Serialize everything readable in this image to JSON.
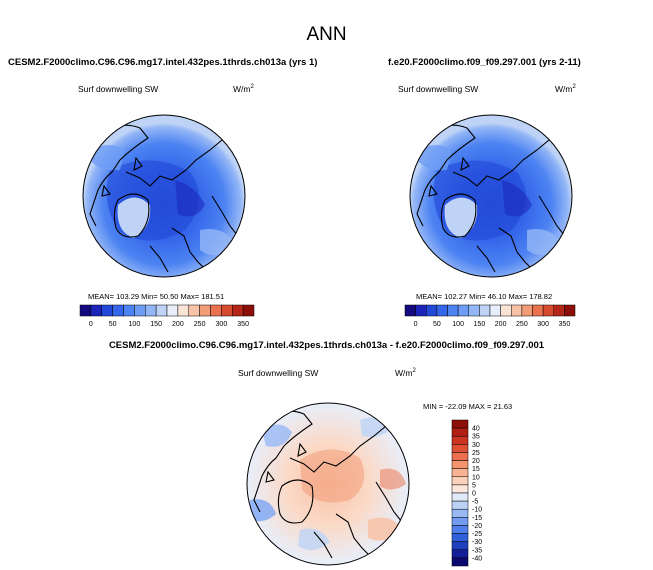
{
  "page_title": "ANN",
  "panels": [
    {
      "case": "CESM2.F2000climo.C96.C96.mg17.intel.432pes.1thrds.ch013a (yrs 1)",
      "variable": "Surf downwelling SW",
      "units_base": "W/m",
      "units_exp": "2",
      "stats": "MEAN= 103.29   Min=  50.50   Max= 181.51"
    },
    {
      "case": "f.e20.F2000climo.f09_f09.297.001 (yrs 2-11)",
      "variable": "Surf downwelling SW",
      "units_base": "W/m",
      "units_exp": "2",
      "stats": "MEAN= 102.27   Min=  46.10   Max= 178.82"
    }
  ],
  "diff_panel": {
    "title": "CESM2.F2000climo.C96.C96.mg17.intel.432pes.1thrds.ch013a - f.e20.F2000climo.f09_f09.297.001",
    "variable": "Surf downwelling SW",
    "units_base": "W/m",
    "units_exp": "2",
    "stats": "MIN = -22.09 MAX =  21.63"
  },
  "chart_data": [
    {
      "type": "heatmap",
      "projection": "north-polar-stereographic",
      "title": "CESM2.F2000climo.C96.C96.mg17.intel.432pes.1thrds.ch013a (yrs 1)",
      "variable": "Surf downwelling SW",
      "units": "W/m2",
      "mean": 103.29,
      "min": 50.5,
      "max": 181.51,
      "colorbar": {
        "ticks": [
          "0",
          "50",
          "100",
          "150",
          "200",
          "250",
          "300",
          "350"
        ],
        "range": [
          0,
          350
        ],
        "colors": [
          "#140a80",
          "#1a24b8",
          "#2248d8",
          "#3566ea",
          "#4d83f2",
          "#6d9cf5",
          "#93b6f6",
          "#bed3f6",
          "#e8eefa",
          "#fbe3d6",
          "#f8c2a6",
          "#f39c78",
          "#ea724e",
          "#d64b2e",
          "#b42618",
          "#8c1009"
        ]
      }
    },
    {
      "type": "heatmap",
      "projection": "north-polar-stereographic",
      "title": "f.e20.F2000climo.f09_f09.297.001 (yrs 2-11)",
      "variable": "Surf downwelling SW",
      "units": "W/m2",
      "mean": 102.27,
      "min": 46.1,
      "max": 178.82,
      "colorbar": {
        "ticks": [
          "0",
          "50",
          "100",
          "150",
          "200",
          "250",
          "300",
          "350"
        ],
        "range": [
          0,
          350
        ],
        "colors": [
          "#140a80",
          "#1a24b8",
          "#2248d8",
          "#3566ea",
          "#4d83f2",
          "#6d9cf5",
          "#93b6f6",
          "#bed3f6",
          "#e8eefa",
          "#fbe3d6",
          "#f8c2a6",
          "#f39c78",
          "#ea724e",
          "#d64b2e",
          "#b42618",
          "#8c1009"
        ]
      }
    },
    {
      "type": "heatmap",
      "projection": "north-polar-stereographic",
      "title": "CESM2.F2000climo.C96.C96.mg17.intel.432pes.1thrds.ch013a - f.e20.F2000climo.f09_f09.297.001",
      "variable": "Surf downwelling SW",
      "units": "W/m2",
      "min": -22.09,
      "max": 21.63,
      "colorbar": {
        "orientation": "vertical",
        "ticks": [
          "40",
          "35",
          "30",
          "25",
          "20",
          "15",
          "10",
          "5",
          "0",
          "-5",
          "-10",
          "-15",
          "-20",
          "-25",
          "-30",
          "-35",
          "-40"
        ],
        "range": [
          -40,
          40
        ],
        "colors": [
          "#8c1009",
          "#b01e14",
          "#cc3320",
          "#e04f33",
          "#ec7050",
          "#f4946e",
          "#f8b395",
          "#fbd1ba",
          "#fbe7dc",
          "#dfe9f9",
          "#bcd1f6",
          "#98b8f4",
          "#739cf0",
          "#4f7fea",
          "#3060dc",
          "#1d3fc0",
          "#121f98",
          "#0a0a6e"
        ]
      }
    }
  ]
}
